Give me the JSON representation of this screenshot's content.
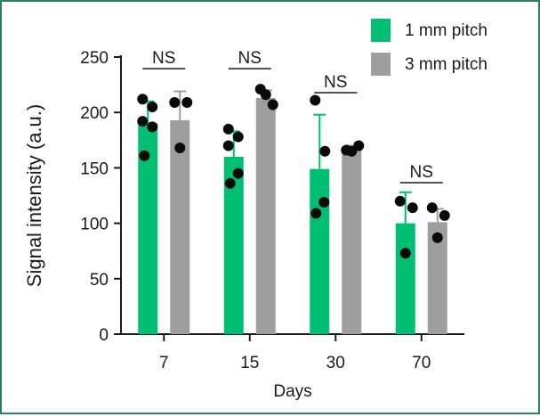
{
  "chart_data": {
    "type": "bar",
    "xlabel": "Days",
    "ylabel": "Signal intensity (a.u.)",
    "ylim": [
      0,
      250
    ],
    "yticks": [
      0,
      50,
      100,
      150,
      200,
      250
    ],
    "categories": [
      "7",
      "15",
      "30",
      "70"
    ],
    "series": [
      {
        "name": "1 mm pitch",
        "color": "#00bf72",
        "values": [
          190,
          160,
          149,
          100
        ],
        "error_upper": [
          210,
          183,
          198,
          128
        ],
        "points": [
          [
            212,
            192,
            205,
            187,
            161
          ],
          [
            185,
            170,
            178,
            145,
            136
          ],
          [
            211,
            165,
            109,
            119
          ],
          [
            120,
            114,
            73
          ]
        ]
      },
      {
        "name": "3 mm pitch",
        "color": "#9e9e9e",
        "values": [
          193,
          213,
          166,
          101
        ],
        "error_upper": [
          219,
          220,
          170,
          113
        ],
        "points": [
          [
            209,
            209,
            168
          ],
          [
            221,
            207,
            216
          ],
          [
            166,
            170,
            165
          ],
          [
            114,
            107,
            87
          ]
        ]
      }
    ],
    "annotations": [
      {
        "text": "NS",
        "category": "7"
      },
      {
        "text": "NS",
        "category": "15"
      },
      {
        "text": "NS",
        "category": "30"
      },
      {
        "text": "NS",
        "category": "70"
      }
    ],
    "legend_position": "top-right",
    "grid": false
  }
}
